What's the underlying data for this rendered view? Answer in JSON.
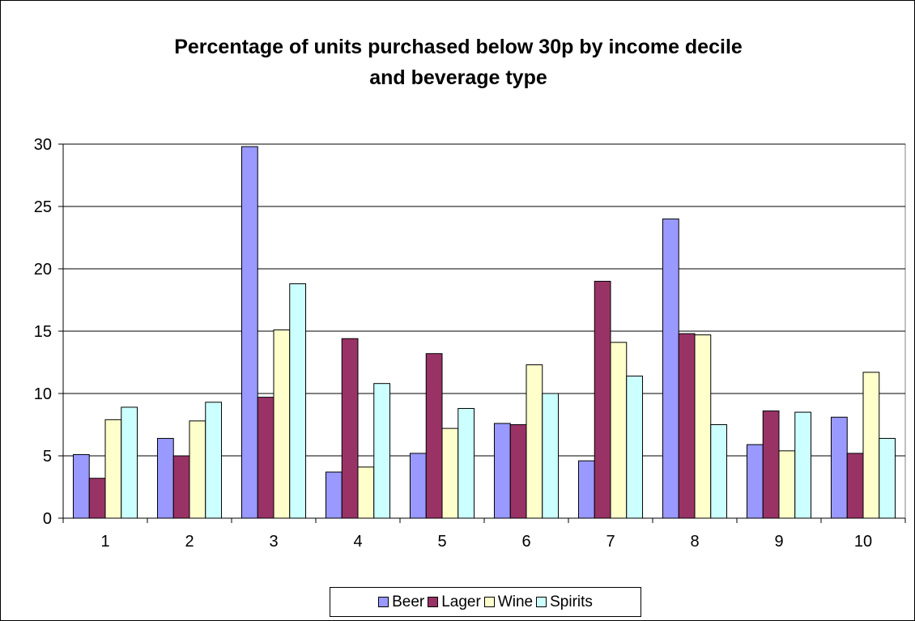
{
  "chart_data": {
    "type": "bar",
    "title_line1": "Percentage of units purchased below 30p by income decile",
    "title_line2": "and beverage type",
    "xlabel": "",
    "ylabel": "",
    "ylim": [
      0,
      30
    ],
    "yticks": [
      0,
      5,
      10,
      15,
      20,
      25,
      30
    ],
    "grid": true,
    "legend_position": "bottom",
    "categories": [
      "1",
      "2",
      "3",
      "4",
      "5",
      "6",
      "7",
      "8",
      "9",
      "10"
    ],
    "series": [
      {
        "name": "Beer",
        "color": "#9999ff",
        "values": [
          5.1,
          6.4,
          29.8,
          3.7,
          5.2,
          7.6,
          4.6,
          24.0,
          5.9,
          8.1
        ]
      },
      {
        "name": "Lager",
        "color": "#993366",
        "values": [
          3.2,
          5.0,
          9.7,
          14.4,
          13.2,
          7.5,
          19.0,
          14.8,
          8.6,
          5.2
        ]
      },
      {
        "name": "Wine",
        "color": "#ffffcc",
        "values": [
          7.9,
          7.8,
          15.1,
          4.1,
          7.2,
          12.3,
          14.1,
          14.7,
          5.4,
          11.7
        ]
      },
      {
        "name": "Spirits",
        "color": "#ccffff",
        "values": [
          8.9,
          9.3,
          18.8,
          10.8,
          8.8,
          10.0,
          11.4,
          7.5,
          8.5,
          6.4
        ]
      }
    ],
    "plot_background": "#ffffff",
    "gridline_color": "#000000"
  }
}
